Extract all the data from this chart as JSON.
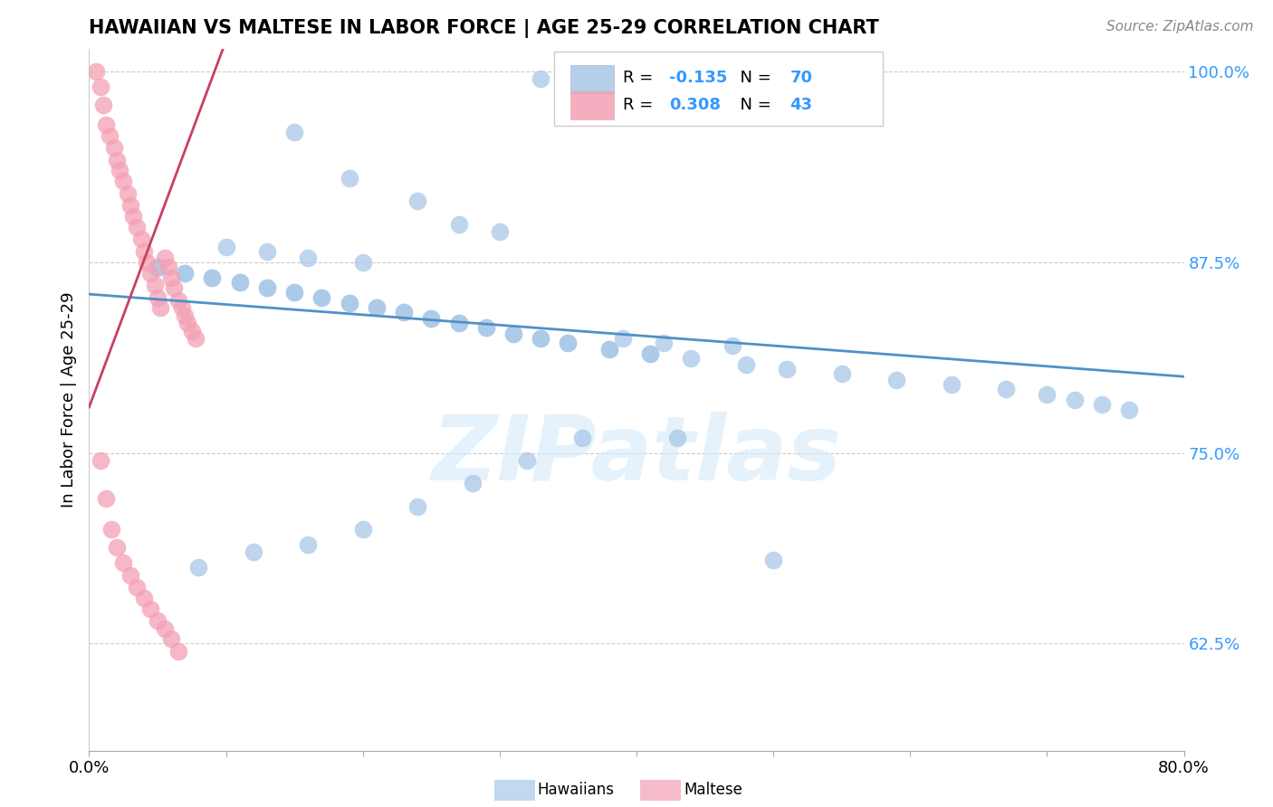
{
  "title": "HAWAIIAN VS MALTESE IN LABOR FORCE | AGE 25-29 CORRELATION CHART",
  "source_text": "Source: ZipAtlas.com",
  "ylabel": "In Labor Force | Age 25-29",
  "xlim": [
    0.0,
    0.8
  ],
  "ylim": [
    0.555,
    1.015
  ],
  "yticks": [
    0.625,
    0.75,
    0.875,
    1.0
  ],
  "ytick_labels": [
    "62.5%",
    "75.0%",
    "87.5%",
    "100.0%"
  ],
  "hawaiian_color": "#a8c8e8",
  "maltese_color": "#f4a0b5",
  "trendline_hawaiian_color": "#5090c8",
  "trendline_maltese_color": "#c84060",
  "R_hawaiian": -0.135,
  "N_hawaiian": 70,
  "R_maltese": 0.308,
  "N_maltese": 43,
  "legend_label_hawaiian": "Hawaiians",
  "legend_label_maltese": "Maltese",
  "watermark": "ZIPatlas",
  "hawaiian_x": [
    0.33,
    0.15,
    0.19,
    0.24,
    0.27,
    0.3,
    0.1,
    0.13,
    0.16,
    0.2,
    0.05,
    0.07,
    0.09,
    0.11,
    0.13,
    0.15,
    0.17,
    0.19,
    0.21,
    0.23,
    0.25,
    0.27,
    0.29,
    0.31,
    0.33,
    0.35,
    0.38,
    0.41,
    0.05,
    0.07,
    0.09,
    0.11,
    0.13,
    0.15,
    0.17,
    0.19,
    0.21,
    0.23,
    0.25,
    0.27,
    0.29,
    0.31,
    0.33,
    0.35,
    0.38,
    0.41,
    0.44,
    0.48,
    0.51,
    0.55,
    0.59,
    0.63,
    0.67,
    0.7,
    0.72,
    0.74,
    0.76,
    0.47,
    0.42,
    0.39,
    0.36,
    0.32,
    0.28,
    0.24,
    0.2,
    0.16,
    0.12,
    0.08,
    0.5,
    0.43
  ],
  "hawaiian_y": [
    0.995,
    0.96,
    0.93,
    0.915,
    0.9,
    0.895,
    0.885,
    0.882,
    0.878,
    0.875,
    0.871,
    0.868,
    0.865,
    0.862,
    0.858,
    0.855,
    0.852,
    0.848,
    0.845,
    0.842,
    0.838,
    0.835,
    0.832,
    0.828,
    0.825,
    0.822,
    0.818,
    0.815,
    0.872,
    0.868,
    0.865,
    0.862,
    0.858,
    0.855,
    0.852,
    0.848,
    0.845,
    0.842,
    0.838,
    0.835,
    0.832,
    0.828,
    0.825,
    0.822,
    0.818,
    0.815,
    0.812,
    0.808,
    0.805,
    0.802,
    0.798,
    0.795,
    0.792,
    0.788,
    0.785,
    0.782,
    0.778,
    0.82,
    0.822,
    0.825,
    0.76,
    0.745,
    0.73,
    0.715,
    0.7,
    0.69,
    0.685,
    0.675,
    0.68,
    0.76
  ],
  "maltese_x": [
    0.005,
    0.008,
    0.01,
    0.012,
    0.015,
    0.018,
    0.02,
    0.022,
    0.025,
    0.028,
    0.03,
    0.032,
    0.035,
    0.038,
    0.04,
    0.042,
    0.045,
    0.048,
    0.05,
    0.052,
    0.055,
    0.058,
    0.06,
    0.062,
    0.065,
    0.068,
    0.07,
    0.072,
    0.075,
    0.078,
    0.008,
    0.012,
    0.016,
    0.02,
    0.025,
    0.03,
    0.035,
    0.04,
    0.045,
    0.05,
    0.055,
    0.06,
    0.065
  ],
  "maltese_y": [
    1.0,
    0.99,
    0.978,
    0.965,
    0.958,
    0.95,
    0.942,
    0.935,
    0.928,
    0.92,
    0.912,
    0.905,
    0.898,
    0.89,
    0.882,
    0.875,
    0.868,
    0.86,
    0.852,
    0.845,
    0.878,
    0.872,
    0.865,
    0.858,
    0.85,
    0.845,
    0.84,
    0.835,
    0.83,
    0.825,
    0.745,
    0.72,
    0.7,
    0.688,
    0.678,
    0.67,
    0.662,
    0.655,
    0.648,
    0.64,
    0.635,
    0.628,
    0.62
  ],
  "trendline_h_x0": 0.0,
  "trendline_h_x1": 0.8,
  "trendline_h_y0": 0.854,
  "trendline_h_y1": 0.8,
  "trendline_m_x0": 0.0,
  "trendline_m_x1": 0.1,
  "trendline_m_y0": 0.78,
  "trendline_m_y1": 1.02
}
